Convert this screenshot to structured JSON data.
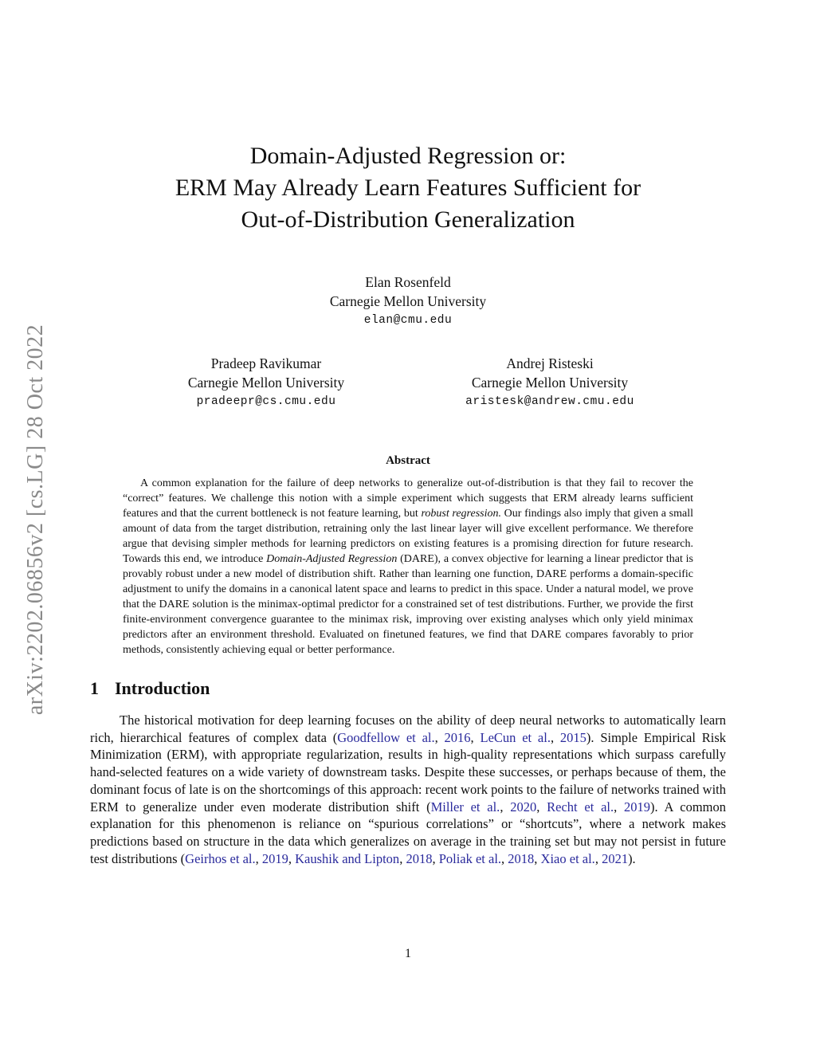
{
  "colors": {
    "text": "#111111",
    "citation_link": "#2a2a9c",
    "watermark_gray": "#8a8a8a"
  },
  "watermark": {
    "text": "arXiv:2202.06856v2  [cs.LG]  28 Oct 2022"
  },
  "header": {
    "title_lines": [
      "Domain-Adjusted Regression or:",
      "ERM May Already Learn Features Sufficient for",
      "Out-of-Distribution Generalization"
    ]
  },
  "authors": [
    {
      "name": "Elan Rosenfeld",
      "affiliation": "Carnegie Mellon University",
      "email": "elan@cmu.edu"
    },
    {
      "name": "Pradeep Ravikumar",
      "affiliation": "Carnegie Mellon University",
      "email": "pradeepr@cs.cmu.edu"
    },
    {
      "name": "Andrej Risteski",
      "affiliation": "Carnegie Mellon University",
      "email": "aristesk@andrew.cmu.edu"
    }
  ],
  "abstract": {
    "heading": "Abstract",
    "segments": [
      {
        "t": "A common explanation for the failure of deep networks to generalize out-of-distribution is that they fail to recover the “correct” features. We challenge this notion with a simple experiment which suggests that ERM already learns sufficient features and that the current bottleneck is not feature learning, but "
      },
      {
        "t": "robust regression.",
        "s": "i"
      },
      {
        "t": " Our findings also imply that given a small amount of data from the target distribution, retraining only the last linear layer will give excellent performance. We therefore argue that devising simpler methods for learning predictors on existing features is a promising direction for future research. Towards this end, we introduce "
      },
      {
        "t": "Domain-Adjusted Regression",
        "s": "i"
      },
      {
        "t": " (DARE), a convex objective for learning a linear predictor that is provably robust under a new model of distribution shift. Rather than learning one function, DARE performs a domain-specific adjustment to unify the domains in a canonical latent space and learns to predict in this space. Under a natural model, we prove that the DARE solution is the minimax-optimal predictor for a constrained set of test distributions. Further, we provide the first finite-environment convergence guarantee to the minimax risk, improving over existing analyses which only yield minimax predictors after an environment threshold. Evaluated on finetuned features, we find that DARE compares favorably to prior methods, consistently achieving equal or better performance."
      }
    ]
  },
  "section1": {
    "number": "1",
    "title": "Introduction"
  },
  "introduction": {
    "segments": [
      {
        "t": "The historical motivation for deep learning focuses on the ability of deep neural networks to automatically learn rich, hierarchical features of complex data ("
      },
      {
        "t": "Goodfellow et al.",
        "s": "cite"
      },
      {
        "t": ", "
      },
      {
        "t": "2016",
        "s": "cite"
      },
      {
        "t": ", "
      },
      {
        "t": "LeCun et al.",
        "s": "cite"
      },
      {
        "t": ", "
      },
      {
        "t": "2015",
        "s": "cite"
      },
      {
        "t": "). Simple Empirical Risk Minimization (ERM), with appropriate regularization, results in high-quality representations which surpass carefully hand-selected features on a wide variety of downstream tasks. Despite these successes, or perhaps because of them, the dominant focus of late is on the shortcomings of this approach: recent work points to the failure of networks trained with ERM to generalize under even moderate distribution shift ("
      },
      {
        "t": "Miller et al.",
        "s": "cite"
      },
      {
        "t": ", "
      },
      {
        "t": "2020",
        "s": "cite"
      },
      {
        "t": ", "
      },
      {
        "t": "Recht et al.",
        "s": "cite"
      },
      {
        "t": ", "
      },
      {
        "t": "2019",
        "s": "cite"
      },
      {
        "t": "). A common explanation for this phenomenon is reliance on “spurious correlations” or “shortcuts”, where a network makes predictions based on structure in the data which generalizes on average in the training set but may not persist in future test distributions ("
      },
      {
        "t": "Geirhos et al.",
        "s": "cite"
      },
      {
        "t": ", "
      },
      {
        "t": "2019",
        "s": "cite"
      },
      {
        "t": ", "
      },
      {
        "t": "Kaushik and Lipton",
        "s": "cite"
      },
      {
        "t": ", "
      },
      {
        "t": "2018",
        "s": "cite"
      },
      {
        "t": ", "
      },
      {
        "t": "Poliak et al.",
        "s": "cite"
      },
      {
        "t": ", "
      },
      {
        "t": "2018",
        "s": "cite"
      },
      {
        "t": ", "
      },
      {
        "t": "Xiao et al.",
        "s": "cite"
      },
      {
        "t": ", "
      },
      {
        "t": "2021",
        "s": "cite"
      },
      {
        "t": ")."
      }
    ]
  },
  "footer": {
    "page_number": "1"
  }
}
